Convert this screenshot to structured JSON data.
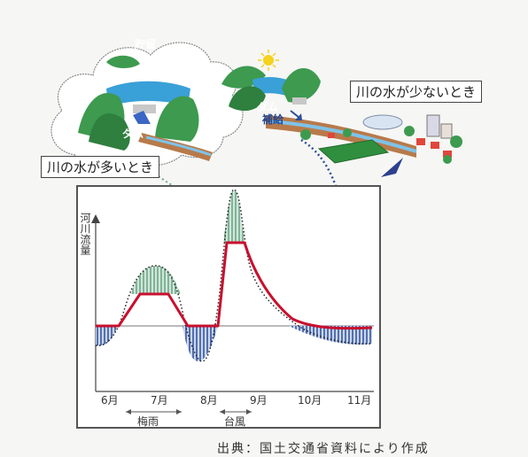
{
  "labels": {
    "storage": "貯留",
    "dam_left": "ダム",
    "dam_right": "ダム",
    "supplement": "補給",
    "high_water": "川の水が多いとき",
    "low_water": "川の水が少ないとき"
  },
  "chart": {
    "ylabel": "河川流量",
    "months": [
      "6月",
      "7月",
      "8月",
      "9月",
      "10月",
      "11月"
    ],
    "periods": [
      "梅雨",
      "台風"
    ]
  },
  "caption": "出典：国土交通省資料により作成",
  "colors": {
    "flow_line": "#c8102e",
    "surplus_fill": "#5a9a7a",
    "deficit_fill": "#2d4f9c",
    "leader_surplus": "#6aa88e",
    "leader_deficit": "#2d4f9c"
  }
}
